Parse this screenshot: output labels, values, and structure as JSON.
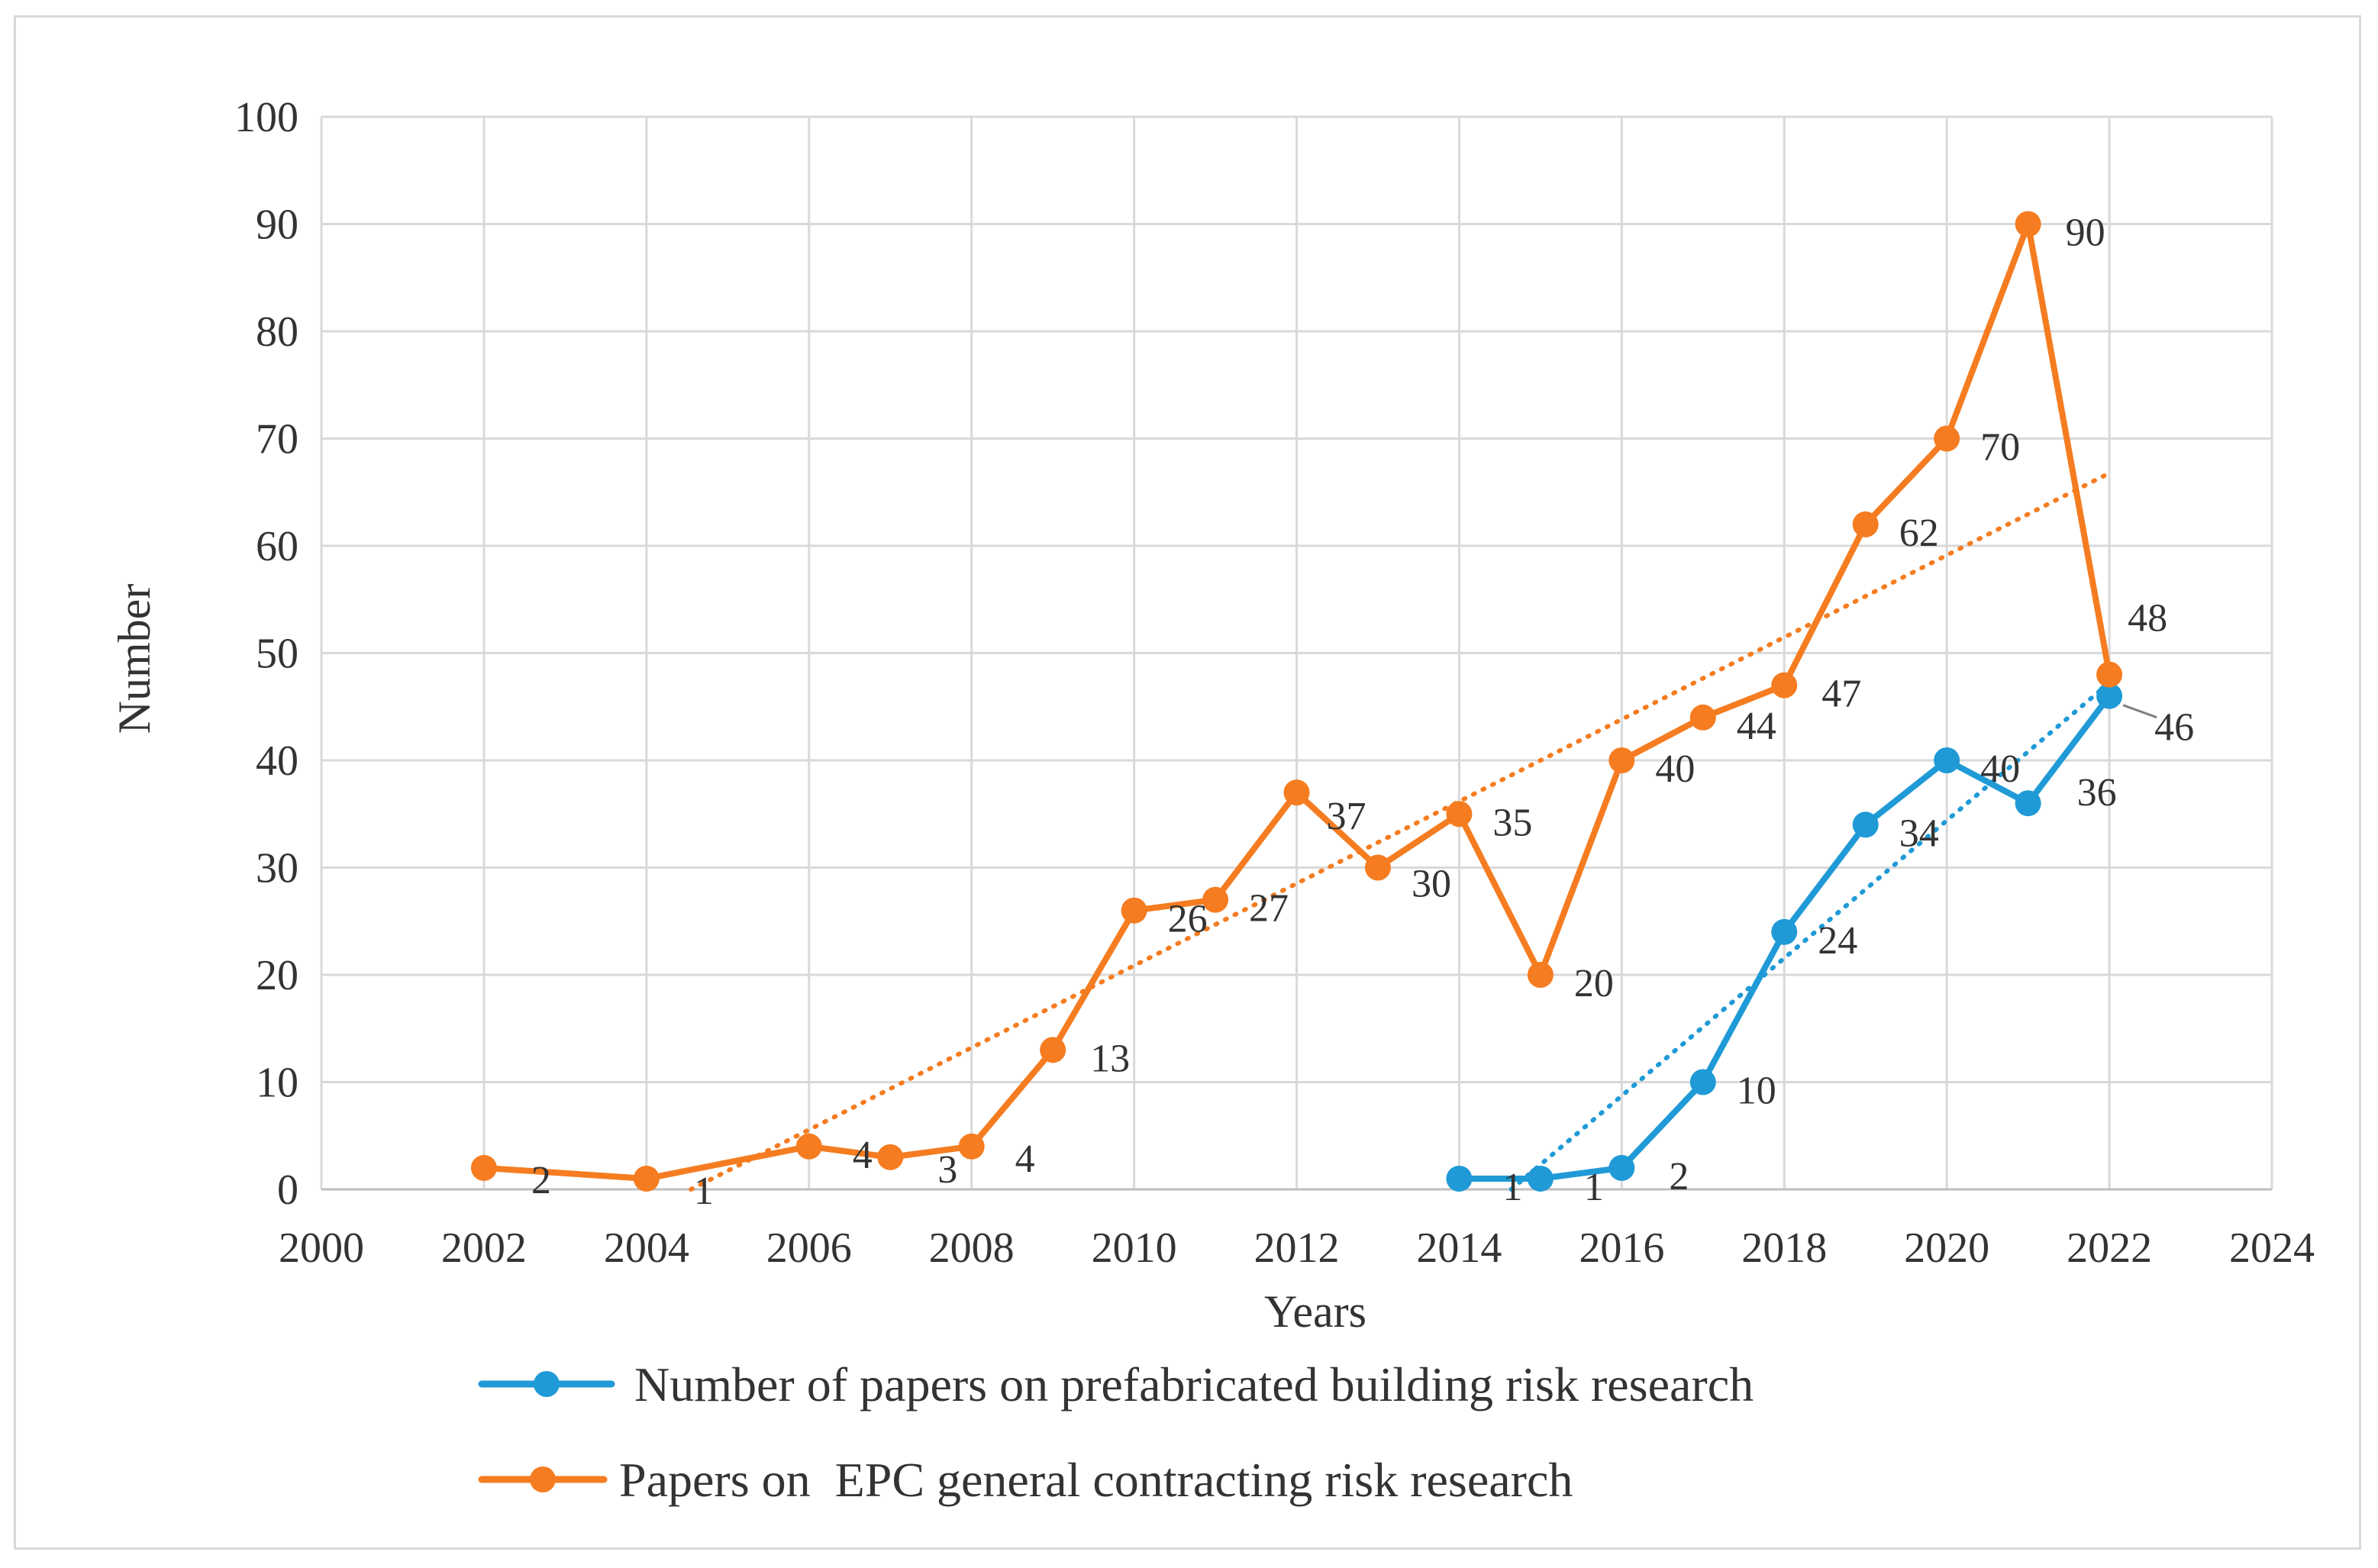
{
  "chart_data": {
    "type": "line",
    "title": "",
    "xlabel": "Years",
    "ylabel": "Number",
    "xlim": [
      2000,
      2024
    ],
    "ylim": [
      0,
      100
    ],
    "x_ticks": [
      "2000",
      "2002",
      "2004",
      "2006",
      "2008",
      "2010",
      "2012",
      "2014",
      "2016",
      "2018",
      "2020",
      "2022",
      "2024"
    ],
    "y_ticks": [
      "0",
      "10",
      "20",
      "30",
      "40",
      "50",
      "60",
      "70",
      "80",
      "90",
      "100"
    ],
    "grid": true,
    "legend_position": "bottom",
    "series": [
      {
        "name": "Number of papers on prefabricated building risk research",
        "color": "#1f9ad6",
        "marker": "circle",
        "trendline": "linear (dotted)",
        "x": [
          2014,
          2015,
          2016,
          2017,
          2018,
          2019,
          2020,
          2021,
          2022
        ],
        "values": [
          1,
          1,
          2,
          10,
          24,
          34,
          40,
          36,
          46
        ],
        "labels": [
          "1",
          "1",
          "2",
          "10",
          "24",
          "34",
          "40",
          "36",
          "46"
        ]
      },
      {
        "name": "Papers on  EPC general contracting risk research",
        "color": "#f57c20",
        "marker": "circle",
        "trendline": "linear (dotted)",
        "x": [
          2002,
          2004,
          2006,
          2007,
          2008,
          2009,
          2010,
          2011,
          2012,
          2013,
          2014,
          2015,
          2016,
          2017,
          2018,
          2019,
          2020,
          2021,
          2022
        ],
        "values": [
          2,
          1,
          4,
          3,
          4,
          13,
          26,
          27,
          37,
          30,
          35,
          20,
          40,
          44,
          47,
          62,
          70,
          90,
          48
        ],
        "labels": [
          "2",
          "1",
          "4",
          "3",
          "4",
          "13",
          "26",
          "27",
          "37",
          "30",
          "35",
          "20",
          "40",
          "44",
          "47",
          "62",
          "70",
          "90",
          "48"
        ]
      }
    ]
  }
}
